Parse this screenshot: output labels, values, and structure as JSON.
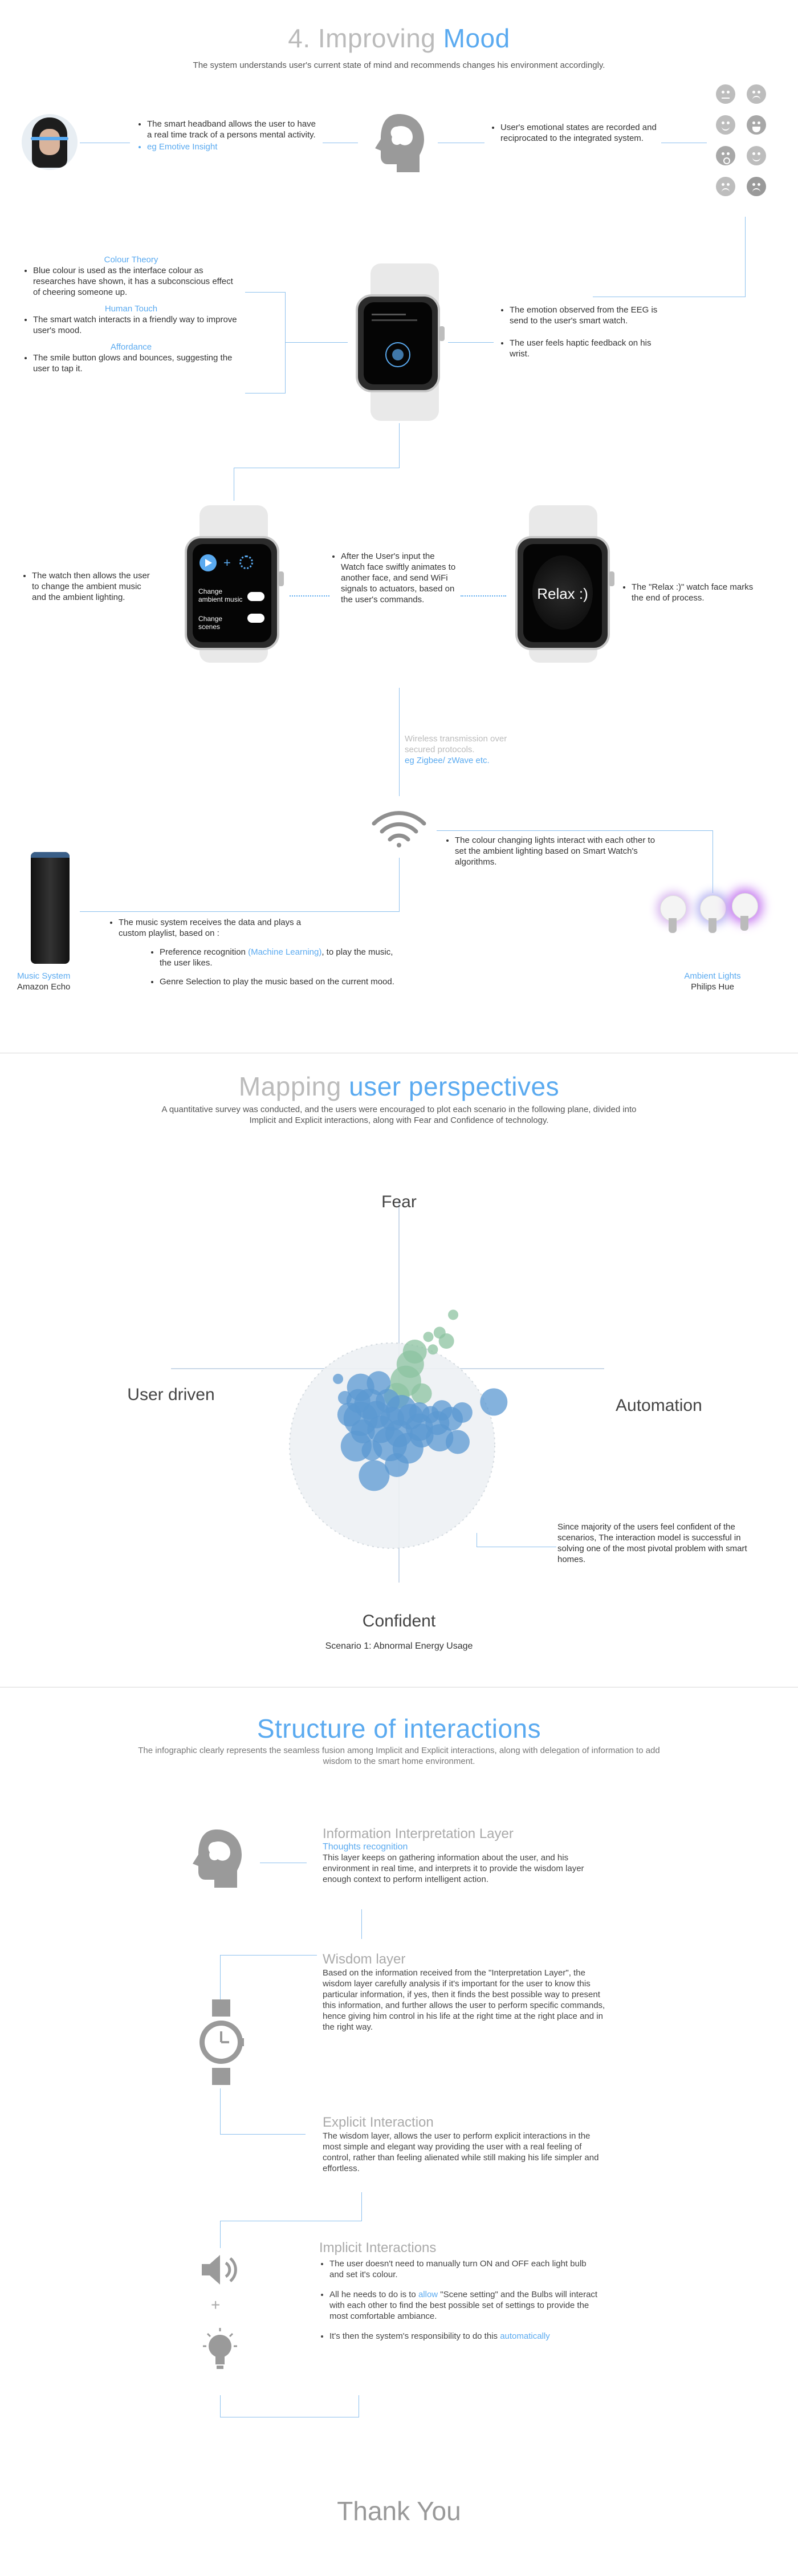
{
  "section1": {
    "title_number": "4.",
    "title_word1": "Improving",
    "title_word2": "Mood",
    "subtitle": "The system understands user's current state of mind and recommends changes his environment accordingly.",
    "headband_text": "The smart headband allows the user to have a real time track of a persons mental activity.",
    "headband_link": "eg Emotive Insight",
    "emotion_text": "User's emotional states are recorded and reciprocated to the integrated system.",
    "colour_theory_title": "Colour Theory",
    "colour_theory_text": "Blue colour is used as the interface colour as researches have shown, it has a subconscious effect of cheering someone up.",
    "human_touch_title": "Human Touch",
    "human_touch_text": "The smart watch interacts in a friendly way to improve user's mood.",
    "affordance_title": "Affordance",
    "affordance_text": "The smile button glows and bounces, suggesting the user to tap it.",
    "eeg_text": "The emotion observed from the EEG is send to the user's smart watch.",
    "haptic_text": "The user feels haptic feedback on his wrist.",
    "watch_change_text": "The watch then allows the user to change the ambient music and the ambient lighting.",
    "watch_ui_line1": "Change ambient music",
    "watch_ui_line2": "Change scenes",
    "after_input_text": "After the User's input the Watch face swiftly animates to another face, and send WiFi signals to actuators, based on the user's commands.",
    "relax_label": "Relax :)",
    "relax_text": "The \"Relax :)\" watch face marks the end of process.",
    "wireless_text": "Wireless transmission over secured protocols.",
    "wireless_link": "eg Zigbee/ zWave etc.",
    "lights_text": "The colour changing lights interact with each other to set the ambient lighting based on Smart Watch's algorithms.",
    "music_text": "The music system receives the data and plays a custom playlist, based on :",
    "pref_text_a": "Preference recognition ",
    "pref_link": "(Machine Learning)",
    "pref_text_b": ", to play the music, the user likes.",
    "genre_text": "Genre Selection to play the music based on the current mood.",
    "music_system_label": "Music System",
    "amazon_label": "Amazon Echo",
    "ambient_label": "Ambient Lights",
    "philips_label": "Philips Hue"
  },
  "section2": {
    "title_word1": "Mapping",
    "title_word2": "user perspectives",
    "subtitle": "A quantitative survey was conducted, and the users were encouraged to plot each scenario in the following plane, divided into Implicit and Explicit interactions, along with Fear and Confidence of technology.",
    "annotation": "Since majority of the users feel confident of the scenarios, The interaction model is successful in solving one of the most pivotal problem with smart homes.",
    "caption": "Scenario 1: Abnormal Energy Usage"
  },
  "chart_data": {
    "type": "scatter",
    "title": "",
    "axis_labels": {
      "top": "Fear",
      "bottom": "Confident",
      "left": "User driven",
      "right": "Automation"
    },
    "x_range": [
      -10,
      10
    ],
    "y_range": [
      -10,
      10
    ],
    "series": [
      {
        "color": "#8cc3a0",
        "points": [
          {
            "x": 4.8,
            "y": 7.3,
            "r": 6
          },
          {
            "x": 3.6,
            "y": 5.6,
            "r": 7
          },
          {
            "x": 2.6,
            "y": 5.2,
            "r": 6
          },
          {
            "x": 4.2,
            "y": 4.8,
            "r": 9
          },
          {
            "x": 3.0,
            "y": 4.0,
            "r": 6
          },
          {
            "x": 1.4,
            "y": 3.8,
            "r": 14
          },
          {
            "x": 1.0,
            "y": 2.6,
            "r": 16
          },
          {
            "x": 0.6,
            "y": 1.0,
            "r": 18
          },
          {
            "x": 2.0,
            "y": -0.2,
            "r": 12
          },
          {
            "x": -0.2,
            "y": -0.4,
            "r": 15
          }
        ]
      },
      {
        "color": "#5b98d2",
        "points": [
          {
            "x": -3.4,
            "y": 0.4,
            "r": 16
          },
          {
            "x": -1.8,
            "y": 0.8,
            "r": 14
          },
          {
            "x": -4.8,
            "y": -0.6,
            "r": 8
          },
          {
            "x": -3.6,
            "y": -0.9,
            "r": 14
          },
          {
            "x": -2.6,
            "y": -1.2,
            "r": 18
          },
          {
            "x": -1.0,
            "y": -0.9,
            "r": 14
          },
          {
            "x": 0.2,
            "y": -1.8,
            "r": 18
          },
          {
            "x": 1.0,
            "y": -2.4,
            "r": 15
          },
          {
            "x": 1.8,
            "y": -2.0,
            "r": 12
          },
          {
            "x": 2.8,
            "y": -2.2,
            "r": 10
          },
          {
            "x": 3.8,
            "y": -1.8,
            "r": 12
          },
          {
            "x": 4.6,
            "y": -2.6,
            "r": 14
          },
          {
            "x": 5.6,
            "y": -2.0,
            "r": 12
          },
          {
            "x": 8.4,
            "y": -1.0,
            "r": 16
          },
          {
            "x": -4.4,
            "y": -2.2,
            "r": 14
          },
          {
            "x": -3.4,
            "y": -2.6,
            "r": 20
          },
          {
            "x": -2.0,
            "y": -2.2,
            "r": 16
          },
          {
            "x": -0.6,
            "y": -2.6,
            "r": 14
          },
          {
            "x": 1.8,
            "y": -3.4,
            "r": 16
          },
          {
            "x": 3.4,
            "y": -3.0,
            "r": 14
          },
          {
            "x": -3.2,
            "y": -3.8,
            "r": 14
          },
          {
            "x": -1.6,
            "y": -3.6,
            "r": 16
          },
          {
            "x": 0.0,
            "y": -4.0,
            "r": 16
          },
          {
            "x": 2.0,
            "y": -4.2,
            "r": 14
          },
          {
            "x": 3.6,
            "y": -4.4,
            "r": 16
          },
          {
            "x": -3.8,
            "y": -5.2,
            "r": 18
          },
          {
            "x": -2.4,
            "y": -5.6,
            "r": 12
          },
          {
            "x": -0.8,
            "y": -5.0,
            "r": 20
          },
          {
            "x": 0.8,
            "y": -5.4,
            "r": 18
          },
          {
            "x": -0.2,
            "y": -7.0,
            "r": 14
          },
          {
            "x": -2.2,
            "y": -8.0,
            "r": 18
          },
          {
            "x": 5.2,
            "y": -4.8,
            "r": 14
          },
          {
            "x": -5.4,
            "y": 1.2,
            "r": 6
          }
        ]
      }
    ]
  },
  "section3": {
    "title": "Structure of interactions",
    "subtitle": "The infographic clearly represents the seamless fusion among Implicit and Explicit interactions, along with delegation of information to add wisdom to the smart home environment.",
    "layer1_title": "Information Interpretation Layer",
    "layer1_sub": "Thoughts recognition",
    "layer1_text": "This layer keeps on gathering information about the user, and his environment in real time, and interprets it to provide the wisdom layer enough context to perform intelligent action.",
    "layer2_title": "Wisdom layer",
    "layer2_text": "Based on the information received from the \"Interpretation Layer\", the wisdom layer carefully analysis if it's important for the user to know this particular information, if yes, then it finds the best possible way to present this information, and further allows the user to perform specific commands,",
    "layer2_link": "hence giving him control in his life at the right time at the right place and in the right way.",
    "layer3_title": "Explicit Interaction",
    "layer3_text": "The wisdom layer, allows the user to perform explicit interactions in the most simple and elegant way providing the user with a real feeling of control, rather than feeling alienated while still making his life simpler and effortless.",
    "layer4_title": "Implicit Interactions",
    "layer4_b1": "The user doesn't need to manually turn ON and OFF each light bulb and set it's colour.",
    "layer4_b2a": "All he needs to do is to ",
    "layer4_b2link": "allow",
    "layer4_b2b": " \"Scene setting\" and the Bulbs will interact with each other to find the best possible set of settings to provide the most comfortable ambiance.",
    "layer4_b3a": "It's then the system's responsibility to do this ",
    "layer4_b3link": "automatically",
    "plus": "+",
    "thanks": "Thank You"
  }
}
